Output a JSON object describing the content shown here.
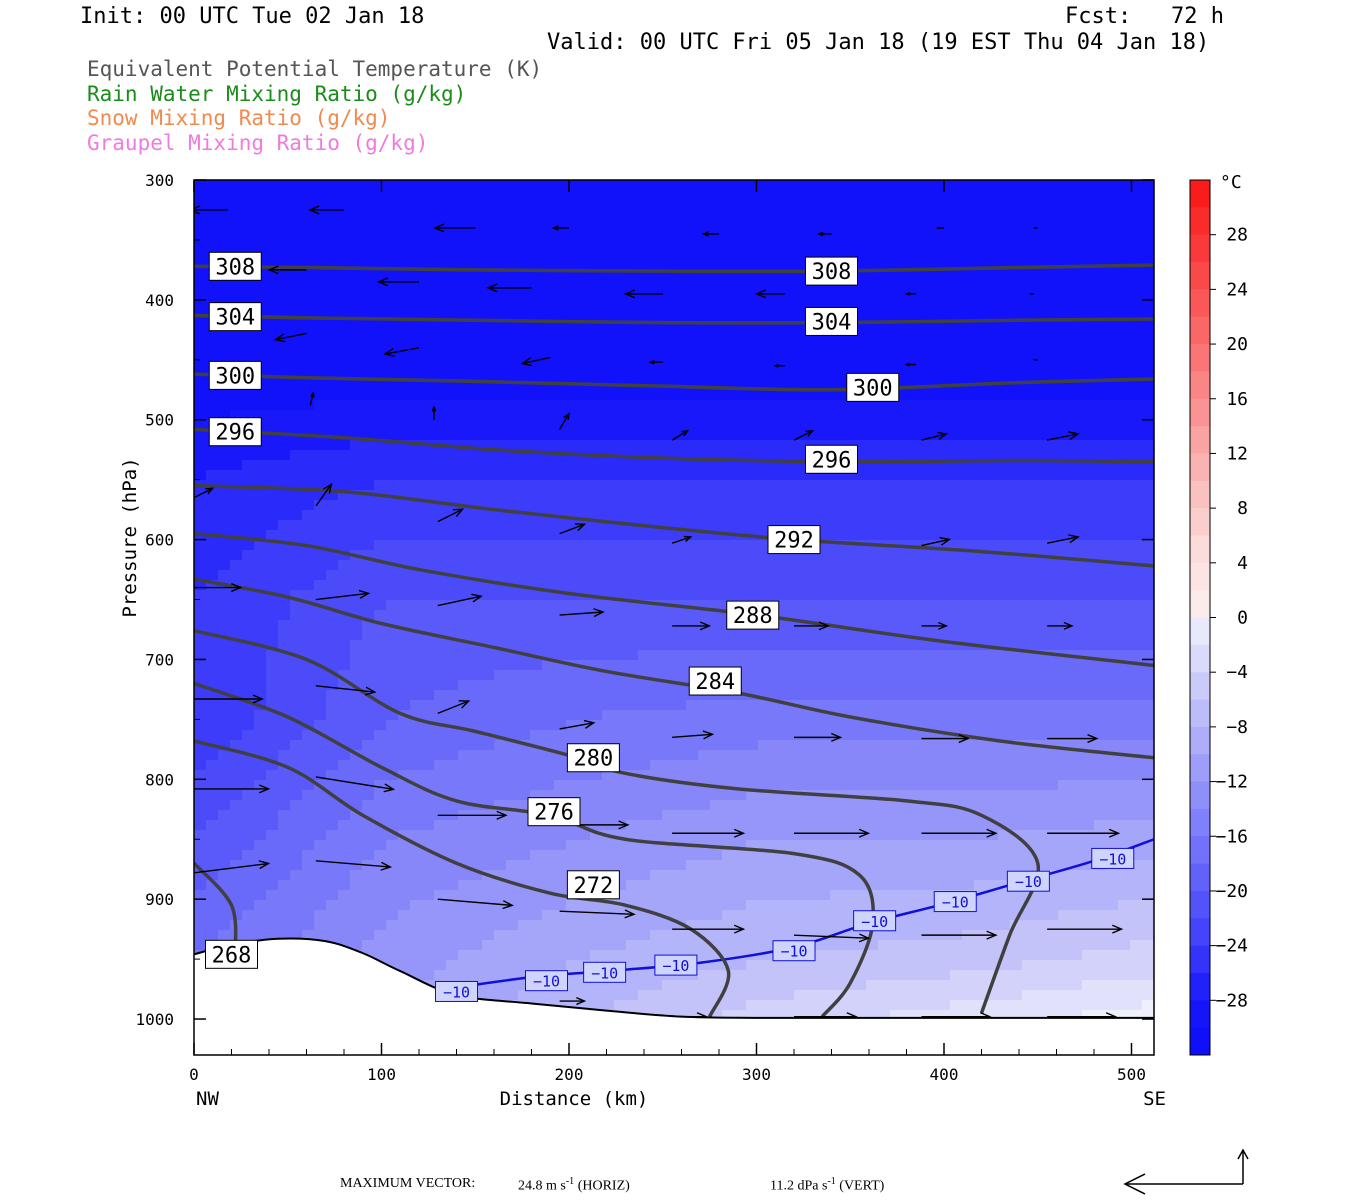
{
  "header": {
    "init": "Init: 00 UTC Tue 02 Jan 18",
    "fcst": "Fcst:   72 h",
    "valid": "Valid: 00 UTC Fri 05 Jan 18 (19 EST Thu 04 Jan 18)",
    "legend": [
      {
        "text": "Equivalent Potential Temperature (K)",
        "color": "#555555"
      },
      {
        "text": "Rain Water Mixing Ratio (g/kg)",
        "color": "#1a8c1a"
      },
      {
        "text": "Snow Mixing Ratio (g/kg)",
        "color": "#f08a50"
      },
      {
        "text": "Graupel Mixing Ratio (g/kg)",
        "color": "#f07ae0"
      }
    ]
  },
  "footer": {
    "max_vector_label": "MAXIMUM VECTOR:",
    "horiz_value": "24.8 m s",
    "horiz_unit": " (HORIZ)",
    "vert_value": "11.2 dPa s",
    "vert_unit": " (VERT)",
    "exp": "-1"
  },
  "chart_data": {
    "type": "cross-section",
    "xlabel": "Distance (km)",
    "ylabel": "Pressure (hPa)",
    "xlim": [
      0,
      512
    ],
    "ylim": [
      300,
      1030
    ],
    "x_ticks": [
      0,
      100,
      200,
      300,
      400,
      500
    ],
    "y_ticks": [
      300,
      400,
      500,
      600,
      700,
      800,
      900,
      1000
    ],
    "x_end_labels": {
      "left": "NW",
      "right": "SE"
    },
    "colorbar": {
      "unit": "°C",
      "labels": [
        28,
        24,
        20,
        16,
        12,
        8,
        4,
        0,
        -4,
        -8,
        -12,
        -16,
        -20,
        -24,
        -28
      ],
      "range": [
        -32,
        32
      ]
    },
    "theta_e_contours": [
      {
        "value": 308,
        "label": "308",
        "points": [
          [
            0,
            372
          ],
          [
            60,
            373
          ],
          [
            150,
            375
          ],
          [
            250,
            376
          ],
          [
            340,
            376
          ],
          [
            440,
            373
          ],
          [
            512,
            371
          ]
        ],
        "label_pos": [
          [
            22,
            372
          ],
          [
            340,
            376
          ]
        ]
      },
      {
        "value": 304,
        "label": "304",
        "points": [
          [
            0,
            413
          ],
          [
            60,
            415
          ],
          [
            150,
            417
          ],
          [
            250,
            419
          ],
          [
            340,
            419
          ],
          [
            440,
            417
          ],
          [
            512,
            416
          ]
        ],
        "label_pos": [
          [
            22,
            414
          ],
          [
            340,
            418
          ]
        ]
      },
      {
        "value": 300,
        "label": "300",
        "points": [
          [
            0,
            462
          ],
          [
            60,
            465
          ],
          [
            150,
            468
          ],
          [
            250,
            472
          ],
          [
            340,
            475
          ],
          [
            440,
            469
          ],
          [
            512,
            466
          ]
        ],
        "label_pos": [
          [
            22,
            463
          ],
          [
            362,
            473
          ]
        ]
      },
      {
        "value": 296,
        "label": "296",
        "points": [
          [
            0,
            508
          ],
          [
            80,
            515
          ],
          [
            160,
            525
          ],
          [
            250,
            532
          ],
          [
            340,
            535
          ],
          [
            440,
            534
          ],
          [
            512,
            535
          ]
        ],
        "label_pos": [
          [
            22,
            510
          ],
          [
            340,
            533
          ]
        ]
      },
      {
        "value": 292,
        "label": "292",
        "points": [
          [
            0,
            555
          ],
          [
            80,
            560
          ],
          [
            160,
            575
          ],
          [
            250,
            590
          ],
          [
            320,
            600
          ],
          [
            420,
            610
          ],
          [
            512,
            622
          ]
        ],
        "label_pos": [
          [
            320,
            600
          ]
        ]
      },
      {
        "value": 288,
        "label": "288",
        "points": [
          [
            0,
            595
          ],
          [
            60,
            605
          ],
          [
            120,
            625
          ],
          [
            200,
            645
          ],
          [
            300,
            663
          ],
          [
            400,
            685
          ],
          [
            512,
            705
          ]
        ],
        "label_pos": [
          [
            298,
            663
          ]
        ]
      },
      {
        "value": 284,
        "label": "284",
        "points": [
          [
            0,
            633
          ],
          [
            50,
            648
          ],
          [
            100,
            670
          ],
          [
            160,
            690
          ],
          [
            220,
            710
          ],
          [
            290,
            728
          ],
          [
            350,
            748
          ],
          [
            430,
            768
          ],
          [
            512,
            782
          ]
        ],
        "label_pos": [
          [
            278,
            718
          ]
        ]
      },
      {
        "value": 280,
        "label": "280",
        "points": [
          [
            0,
            676
          ],
          [
            60,
            700
          ],
          [
            110,
            745
          ],
          [
            150,
            760
          ],
          [
            200,
            780
          ],
          [
            230,
            795
          ],
          [
            290,
            808
          ],
          [
            380,
            818
          ],
          [
            420,
            830
          ],
          [
            450,
            870
          ],
          [
            435,
            930
          ],
          [
            420,
            995
          ]
        ],
        "label_pos": [
          [
            213,
            782
          ]
        ]
      },
      {
        "value": 276,
        "label": "276",
        "points": [
          [
            0,
            720
          ],
          [
            50,
            748
          ],
          [
            100,
            790
          ],
          [
            140,
            818
          ],
          [
            190,
            830
          ],
          [
            230,
            850
          ],
          [
            320,
            862
          ],
          [
            355,
            880
          ],
          [
            362,
            920
          ],
          [
            350,
            970
          ],
          [
            335,
            998
          ]
        ],
        "label_pos": [
          [
            192,
            827
          ]
        ]
      },
      {
        "value": 272,
        "label": "272",
        "points": [
          [
            0,
            768
          ],
          [
            50,
            790
          ],
          [
            90,
            830
          ],
          [
            140,
            870
          ],
          [
            190,
            895
          ],
          [
            230,
            905
          ],
          [
            265,
            925
          ],
          [
            285,
            960
          ],
          [
            275,
            998
          ]
        ],
        "label_pos": [
          [
            213,
            888
          ]
        ]
      },
      {
        "value": 268,
        "label": "268",
        "points": [
          [
            0,
            870
          ],
          [
            20,
            905
          ],
          [
            22,
            945
          ]
        ],
        "label_pos": [
          [
            20,
            946
          ]
        ]
      }
    ],
    "isotherm_minus10": {
      "value": -10,
      "label": "-10",
      "points": [
        [
          130,
          976
        ],
        [
          180,
          965
        ],
        [
          220,
          960
        ],
        [
          270,
          953
        ],
        [
          320,
          940
        ],
        [
          360,
          920
        ],
        [
          400,
          904
        ],
        [
          440,
          886
        ],
        [
          480,
          868
        ],
        [
          512,
          850
        ]
      ],
      "label_pos": [
        [
          140,
          977
        ],
        [
          188,
          968
        ],
        [
          219,
          961
        ],
        [
          257,
          955
        ],
        [
          320,
          943
        ],
        [
          363,
          918
        ],
        [
          406,
          902
        ],
        [
          445,
          885
        ],
        [
          490,
          866
        ]
      ]
    },
    "terrain_surface_hpa": [
      [
        0,
        946
      ],
      [
        20,
        938
      ],
      [
        45,
        933
      ],
      [
        70,
        935
      ],
      [
        90,
        945
      ],
      [
        110,
        960
      ],
      [
        140,
        980
      ],
      [
        180,
        987
      ],
      [
        220,
        993
      ],
      [
        260,
        998
      ],
      [
        300,
        999
      ],
      [
        360,
        999
      ],
      [
        420,
        999
      ],
      [
        512,
        999
      ]
    ],
    "temperature_field": {
      "levels": [
        -30,
        -28,
        -26,
        -24,
        -22,
        -20,
        -18,
        -16,
        -14,
        -12,
        -10,
        -8,
        -6,
        -4,
        -2,
        0
      ],
      "description_rows": [
        {
          "p": 300,
          "vals": [
            -30,
            -30,
            -30,
            -30,
            -30,
            -30
          ]
        },
        {
          "p": 450,
          "vals": [
            -30,
            -30,
            -30,
            -30,
            -30,
            -30
          ]
        },
        {
          "p": 550,
          "vals": [
            -26,
            -24,
            -24,
            -24,
            -24,
            -24
          ]
        },
        {
          "p": 650,
          "vals": [
            -24,
            -20,
            -20,
            -20,
            -20,
            -20
          ]
        },
        {
          "p": 750,
          "vals": [
            -24,
            -18,
            -16,
            -15,
            -15,
            -15
          ]
        },
        {
          "p": 850,
          "vals": [
            -20,
            -14,
            -12,
            -10,
            -10,
            -9
          ]
        },
        {
          "p": 950,
          "vals": [
            -16,
            -11,
            -8,
            -6,
            -5,
            -3
          ]
        },
        {
          "p": 1000,
          "vals": [
            -14,
            -10,
            -6,
            -3,
            -1,
            1
          ]
        }
      ]
    },
    "wind_vectors": [
      {
        "x": 18,
        "p": 325,
        "u": -12,
        "w": 0
      },
      {
        "x": 80,
        "p": 325,
        "u": -11,
        "w": 0
      },
      {
        "x": 150,
        "p": 340,
        "u": -13,
        "w": 0
      },
      {
        "x": 200,
        "p": 340,
        "u": -5,
        "w": 0
      },
      {
        "x": 280,
        "p": 345,
        "u": -5,
        "w": 0
      },
      {
        "x": 340,
        "p": 345,
        "u": -4,
        "w": 0
      },
      {
        "x": 400,
        "p": 340,
        "u": -2,
        "w": 0
      },
      {
        "x": 450,
        "p": 340,
        "u": -1,
        "w": 0
      },
      {
        "x": 60,
        "p": 375,
        "u": -12,
        "w": 0
      },
      {
        "x": 120,
        "p": 385,
        "u": -13,
        "w": 0
      },
      {
        "x": 180,
        "p": 390,
        "u": -14,
        "w": 0
      },
      {
        "x": 250,
        "p": 395,
        "u": -12,
        "w": 0
      },
      {
        "x": 315,
        "p": 395,
        "u": -9,
        "w": 0
      },
      {
        "x": 385,
        "p": 395,
        "u": -3,
        "w": 0
      },
      {
        "x": 448,
        "p": 395,
        "u": -1,
        "w": 0
      },
      {
        "x": 60,
        "p": 428,
        "u": -10,
        "w": -2
      },
      {
        "x": 120,
        "p": 440,
        "u": -11,
        "w": -2
      },
      {
        "x": 190,
        "p": 448,
        "u": -9,
        "w": -2
      },
      {
        "x": 250,
        "p": 452,
        "u": -4,
        "w": 0
      },
      {
        "x": 315,
        "p": 455,
        "u": -3,
        "w": 0
      },
      {
        "x": 385,
        "p": 454,
        "u": -3,
        "w": 0
      },
      {
        "x": 450,
        "p": 450,
        "u": -1,
        "w": 0
      },
      {
        "x": 62,
        "p": 488,
        "u": 1,
        "w": 4
      },
      {
        "x": 128,
        "p": 500,
        "u": 0,
        "w": 4
      },
      {
        "x": 195,
        "p": 508,
        "u": 3,
        "w": 5
      },
      {
        "x": 255,
        "p": 517,
        "u": 5,
        "w": 3
      },
      {
        "x": 320,
        "p": 517,
        "u": 6,
        "w": 3
      },
      {
        "x": 388,
        "p": 517,
        "u": 8,
        "w": 2
      },
      {
        "x": 455,
        "p": 517,
        "u": 10,
        "w": 2
      },
      {
        "x": 0,
        "p": 565,
        "u": 6,
        "w": 3
      },
      {
        "x": 65,
        "p": 572,
        "u": 5,
        "w": 7
      },
      {
        "x": 130,
        "p": 585,
        "u": 8,
        "w": 4
      },
      {
        "x": 195,
        "p": 595,
        "u": 8,
        "w": 3
      },
      {
        "x": 255,
        "p": 603,
        "u": 6,
        "w": 2
      },
      {
        "x": 388,
        "p": 605,
        "u": 9,
        "w": 2
      },
      {
        "x": 455,
        "p": 603,
        "u": 10,
        "w": 2
      },
      {
        "x": 0,
        "p": 640,
        "u": 15,
        "w": 0
      },
      {
        "x": 65,
        "p": 650,
        "u": 17,
        "w": 2
      },
      {
        "x": 130,
        "p": 655,
        "u": 14,
        "w": 3
      },
      {
        "x": 195,
        "p": 663,
        "u": 14,
        "w": 1
      },
      {
        "x": 255,
        "p": 672,
        "u": 12,
        "w": 0
      },
      {
        "x": 320,
        "p": 672,
        "u": 11,
        "w": 0
      },
      {
        "x": 388,
        "p": 672,
        "u": 8,
        "w": 0
      },
      {
        "x": 455,
        "p": 672,
        "u": 8,
        "w": 0
      },
      {
        "x": 0,
        "p": 733,
        "u": 22,
        "w": 0
      },
      {
        "x": 65,
        "p": 722,
        "u": 19,
        "w": -2
      },
      {
        "x": 130,
        "p": 745,
        "u": 10,
        "w": 4
      },
      {
        "x": 195,
        "p": 758,
        "u": 11,
        "w": 2
      },
      {
        "x": 255,
        "p": 765,
        "u": 13,
        "w": 1
      },
      {
        "x": 320,
        "p": 765,
        "u": 15,
        "w": 0
      },
      {
        "x": 388,
        "p": 766,
        "u": 15,
        "w": 0
      },
      {
        "x": 455,
        "p": 766,
        "u": 16,
        "w": 0
      },
      {
        "x": 0,
        "p": 808,
        "u": 24,
        "w": 0
      },
      {
        "x": 65,
        "p": 798,
        "u": 25,
        "w": -4
      },
      {
        "x": 130,
        "p": 830,
        "u": 22,
        "w": 0
      },
      {
        "x": 195,
        "p": 838,
        "u": 22,
        "w": 0
      },
      {
        "x": 255,
        "p": 845,
        "u": 23,
        "w": 0
      },
      {
        "x": 320,
        "p": 845,
        "u": 24,
        "w": 0
      },
      {
        "x": 388,
        "p": 845,
        "u": 24,
        "w": 0
      },
      {
        "x": 455,
        "p": 845,
        "u": 23,
        "w": 0
      },
      {
        "x": 0,
        "p": 878,
        "u": 24,
        "w": 3
      },
      {
        "x": 65,
        "p": 868,
        "u": 24,
        "w": -2
      },
      {
        "x": 130,
        "p": 900,
        "u": 24,
        "w": -2
      },
      {
        "x": 195,
        "p": 910,
        "u": 24,
        "w": -1
      },
      {
        "x": 255,
        "p": 925,
        "u": 23,
        "w": 0
      },
      {
        "x": 320,
        "p": 930,
        "u": 24,
        "w": -1
      },
      {
        "x": 388,
        "p": 930,
        "u": 24,
        "w": 0
      },
      {
        "x": 455,
        "p": 925,
        "u": 24,
        "w": 0
      },
      {
        "x": 45,
        "p": 940,
        "u": 10,
        "w": 0
      },
      {
        "x": 130,
        "p": 975,
        "u": 12,
        "w": -1
      },
      {
        "x": 195,
        "p": 985,
        "u": 8,
        "w": 0
      },
      {
        "x": 255,
        "p": 998,
        "u": 11,
        "w": 0
      },
      {
        "x": 320,
        "p": 998,
        "u": 20,
        "w": 0
      },
      {
        "x": 388,
        "p": 998,
        "u": 22,
        "w": 0
      },
      {
        "x": 455,
        "p": 998,
        "u": 22,
        "w": 0
      }
    ]
  }
}
